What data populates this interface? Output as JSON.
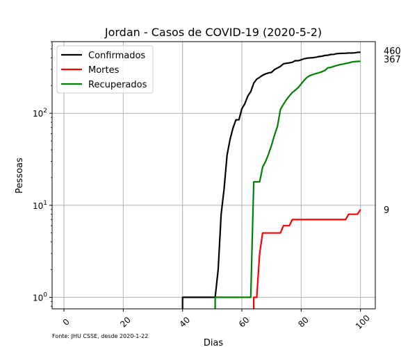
{
  "chart_data": {
    "type": "line",
    "title": "Jordan - Casos de COVID-19 (2020-5-2)",
    "xlabel": "Dias",
    "ylabel": "Pessoas",
    "yscale": "log",
    "xlim": [
      -4,
      105
    ],
    "ylim": [
      0.75,
      600
    ],
    "grid": true,
    "legend_position": "top-left",
    "x_ticks": [
      0,
      20,
      40,
      60,
      80,
      100
    ],
    "x_tick_labels": [
      "0",
      "20",
      "40",
      "60",
      "80",
      "100"
    ],
    "y_ticks": [
      1,
      10,
      100
    ],
    "y_tick_labels": [
      {
        "base": "10",
        "exp": "0"
      },
      {
        "base": "10",
        "exp": "1"
      },
      {
        "base": "10",
        "exp": "2"
      }
    ],
    "end_labels": [
      "460",
      "367",
      "9"
    ],
    "source_note": "Fonte: JHU CSSE, desde 2020-1-22",
    "series": [
      {
        "name": "Confirmados",
        "color": "#000000",
        "points": [
          [
            40,
            0.75
          ],
          [
            40,
            1
          ],
          [
            51,
            1
          ],
          [
            52,
            2
          ],
          [
            53,
            8
          ],
          [
            54,
            15
          ],
          [
            55,
            35
          ],
          [
            56,
            52
          ],
          [
            57,
            69
          ],
          [
            58,
            85
          ],
          [
            59,
            85
          ],
          [
            60,
            112
          ],
          [
            61,
            127
          ],
          [
            62,
            154
          ],
          [
            63,
            172
          ],
          [
            64,
            212
          ],
          [
            65,
            235
          ],
          [
            66,
            246
          ],
          [
            67,
            259
          ],
          [
            68,
            268
          ],
          [
            69,
            274
          ],
          [
            70,
            278
          ],
          [
            71,
            299
          ],
          [
            72,
            310
          ],
          [
            73,
            323
          ],
          [
            74,
            345
          ],
          [
            75,
            349
          ],
          [
            76,
            353
          ],
          [
            77,
            358
          ],
          [
            78,
            372
          ],
          [
            79,
            372
          ],
          [
            80,
            381
          ],
          [
            81,
            391
          ],
          [
            82,
            397
          ],
          [
            83,
            400
          ],
          [
            84,
            402
          ],
          [
            85,
            407
          ],
          [
            86,
            413
          ],
          [
            87,
            417
          ],
          [
            88,
            425
          ],
          [
            89,
            428
          ],
          [
            90,
            435
          ],
          [
            91,
            437
          ],
          [
            92,
            444
          ],
          [
            93,
            447
          ],
          [
            94,
            448
          ],
          [
            95,
            449
          ],
          [
            96,
            451
          ],
          [
            97,
            451
          ],
          [
            98,
            453
          ],
          [
            99,
            459
          ],
          [
            100,
            460
          ]
        ]
      },
      {
        "name": "Mortes",
        "color": "#ff0000",
        "points": [
          [
            64,
            0.75
          ],
          [
            64,
            1
          ],
          [
            65,
            1
          ],
          [
            66,
            3
          ],
          [
            67,
            5
          ],
          [
            68,
            5
          ],
          [
            69,
            5
          ],
          [
            70,
            5
          ],
          [
            71,
            5
          ],
          [
            72,
            5
          ],
          [
            73,
            5
          ],
          [
            74,
            6
          ],
          [
            75,
            6
          ],
          [
            76,
            6
          ],
          [
            77,
            7
          ],
          [
            78,
            7
          ],
          [
            79,
            7
          ],
          [
            80,
            7
          ],
          [
            81,
            7
          ],
          [
            82,
            7
          ],
          [
            83,
            7
          ],
          [
            84,
            7
          ],
          [
            85,
            7
          ],
          [
            86,
            7
          ],
          [
            87,
            7
          ],
          [
            88,
            7
          ],
          [
            89,
            7
          ],
          [
            90,
            7
          ],
          [
            91,
            7
          ],
          [
            92,
            7
          ],
          [
            93,
            7
          ],
          [
            94,
            7
          ],
          [
            95,
            7
          ],
          [
            96,
            8
          ],
          [
            97,
            8
          ],
          [
            98,
            8
          ],
          [
            99,
            8
          ],
          [
            100,
            9
          ]
        ]
      },
      {
        "name": "Recuperados",
        "color": "#008000",
        "points": [
          [
            51,
            0.75
          ],
          [
            51,
            1
          ],
          [
            52,
            1
          ],
          [
            53,
            1
          ],
          [
            54,
            1
          ],
          [
            55,
            1
          ],
          [
            56,
            1
          ],
          [
            57,
            1
          ],
          [
            58,
            1
          ],
          [
            59,
            1
          ],
          [
            60,
            1
          ],
          [
            61,
            1
          ],
          [
            62,
            1
          ],
          [
            63,
            1
          ],
          [
            64,
            18
          ],
          [
            65,
            18
          ],
          [
            66,
            18
          ],
          [
            67,
            26
          ],
          [
            68,
            30
          ],
          [
            69,
            36
          ],
          [
            70,
            45
          ],
          [
            71,
            58
          ],
          [
            72,
            72
          ],
          [
            73,
            110
          ],
          [
            74,
            125
          ],
          [
            75,
            140
          ],
          [
            76,
            154
          ],
          [
            77,
            168
          ],
          [
            78,
            178
          ],
          [
            79,
            190
          ],
          [
            80,
            208
          ],
          [
            81,
            228
          ],
          [
            82,
            246
          ],
          [
            83,
            257
          ],
          [
            84,
            264
          ],
          [
            85,
            270
          ],
          [
            86,
            275
          ],
          [
            87,
            283
          ],
          [
            88,
            292
          ],
          [
            89,
            312
          ],
          [
            90,
            315
          ],
          [
            91,
            323
          ],
          [
            92,
            330
          ],
          [
            93,
            337
          ],
          [
            94,
            342
          ],
          [
            95,
            347
          ],
          [
            96,
            352
          ],
          [
            97,
            360
          ],
          [
            98,
            363
          ],
          [
            99,
            366
          ],
          [
            100,
            367
          ]
        ]
      }
    ]
  }
}
